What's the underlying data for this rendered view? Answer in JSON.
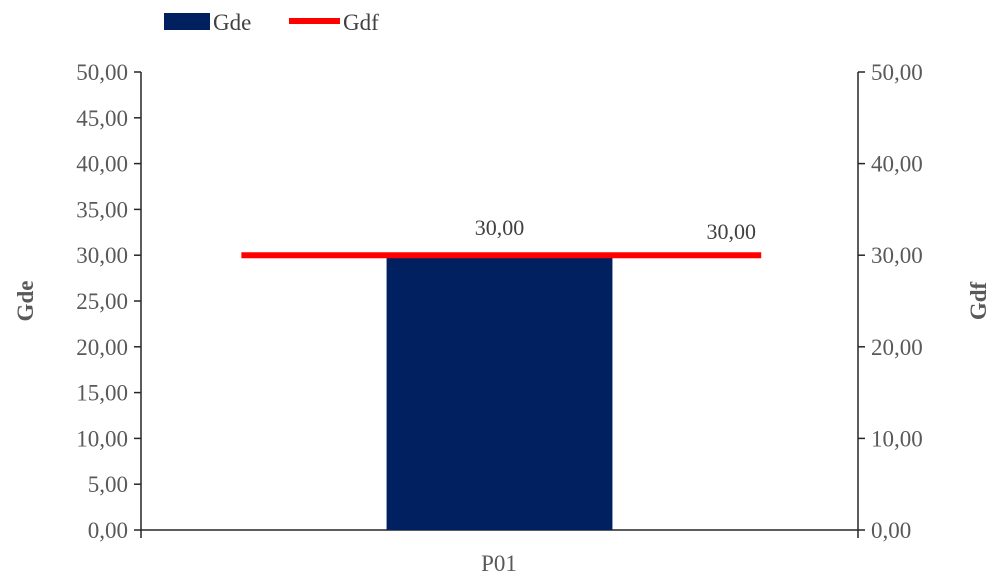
{
  "chart_data": {
    "type": "bar",
    "categories": [
      "P01"
    ],
    "series": [
      {
        "name": "Gde",
        "kind": "bar",
        "axis": "left",
        "values": [
          30.0
        ],
        "color": "#002060",
        "label": "30,00"
      },
      {
        "name": "Gdf",
        "kind": "line",
        "axis": "right",
        "values": [
          30.0
        ],
        "color": "#ff0000",
        "label": "30,00"
      }
    ],
    "y_left": {
      "label": "Gde",
      "ylim": [
        0,
        50
      ],
      "step": 5,
      "ticks": [
        "0,00",
        "5,00",
        "10,00",
        "15,00",
        "20,00",
        "25,00",
        "30,00",
        "35,00",
        "40,00",
        "45,00",
        "50,00"
      ]
    },
    "y_right": {
      "label": "Gdf",
      "ylim": [
        0,
        50
      ],
      "step": 10,
      "ticks": [
        "0,00",
        "10,00",
        "20,00",
        "30,00",
        "40,00",
        "50,00"
      ]
    },
    "legend": {
      "placement": "top-left",
      "entries": [
        "Gde",
        "Gdf"
      ]
    },
    "grid": false
  }
}
